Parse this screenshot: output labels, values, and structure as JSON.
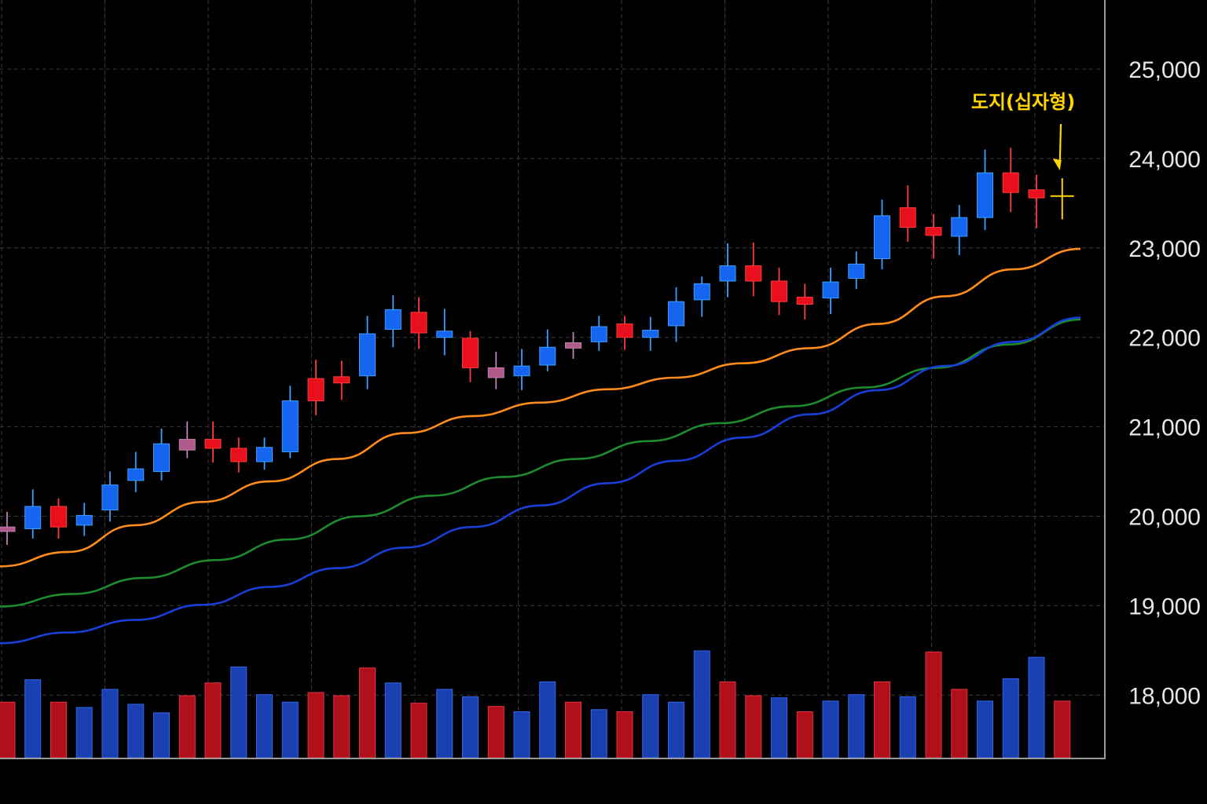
{
  "chart_data": {
    "type": "candlestick",
    "y_axis": {
      "ticks": [
        "25,000",
        "24,000",
        "23,000",
        "22,000",
        "21,000",
        "20,000",
        "19,000",
        "18,000"
      ],
      "tick_values": [
        25000,
        24000,
        23000,
        22000,
        21000,
        20000,
        19000,
        18000
      ],
      "ylim": [
        17300,
        25800
      ],
      "side": "right"
    },
    "grid": true,
    "colors": {
      "background": "#000000",
      "up": "#1565f0",
      "down": "#e8101c",
      "doji": "#ffd400",
      "ma_short": "#ff8c1a",
      "ma_mid": "#1e8c2e",
      "ma_long": "#1a3fd6",
      "grid": "#3a3a3a",
      "axis": "#9a9a9a"
    },
    "candles": [
      {
        "o": 19880,
        "h": 20050,
        "l": 19680,
        "c": 19830,
        "dir": "doji-purple"
      },
      {
        "o": 19860,
        "h": 20300,
        "l": 19750,
        "c": 20110,
        "dir": "up"
      },
      {
        "o": 20110,
        "h": 20200,
        "l": 19750,
        "c": 19880,
        "dir": "down"
      },
      {
        "o": 19900,
        "h": 20150,
        "l": 19780,
        "c": 20010,
        "dir": "up"
      },
      {
        "o": 20070,
        "h": 20500,
        "l": 19940,
        "c": 20350,
        "dir": "up"
      },
      {
        "o": 20400,
        "h": 20720,
        "l": 20270,
        "c": 20530,
        "dir": "up"
      },
      {
        "o": 20500,
        "h": 20980,
        "l": 20400,
        "c": 20810,
        "dir": "up"
      },
      {
        "o": 20860,
        "h": 21060,
        "l": 20650,
        "c": 20740,
        "dir": "doji-purple"
      },
      {
        "o": 20860,
        "h": 21060,
        "l": 20600,
        "c": 20760,
        "dir": "down"
      },
      {
        "o": 20760,
        "h": 20880,
        "l": 20490,
        "c": 20610,
        "dir": "down"
      },
      {
        "o": 20610,
        "h": 20880,
        "l": 20520,
        "c": 20770,
        "dir": "up"
      },
      {
        "o": 20720,
        "h": 21460,
        "l": 20650,
        "c": 21290,
        "dir": "up"
      },
      {
        "o": 21540,
        "h": 21750,
        "l": 21130,
        "c": 21290,
        "dir": "down"
      },
      {
        "o": 21560,
        "h": 21740,
        "l": 21300,
        "c": 21490,
        "dir": "down"
      },
      {
        "o": 21570,
        "h": 22240,
        "l": 21420,
        "c": 22040,
        "dir": "up"
      },
      {
        "o": 22090,
        "h": 22470,
        "l": 21890,
        "c": 22310,
        "dir": "up"
      },
      {
        "o": 22280,
        "h": 22450,
        "l": 21870,
        "c": 22050,
        "dir": "down"
      },
      {
        "o": 22000,
        "h": 22320,
        "l": 21800,
        "c": 22070,
        "dir": "up"
      },
      {
        "o": 21990,
        "h": 22070,
        "l": 21500,
        "c": 21660,
        "dir": "down"
      },
      {
        "o": 21660,
        "h": 21840,
        "l": 21420,
        "c": 21550,
        "dir": "doji-purple"
      },
      {
        "o": 21570,
        "h": 21870,
        "l": 21410,
        "c": 21680,
        "dir": "up"
      },
      {
        "o": 21690,
        "h": 22090,
        "l": 21620,
        "c": 21890,
        "dir": "up"
      },
      {
        "o": 21940,
        "h": 22060,
        "l": 21760,
        "c": 21880,
        "dir": "doji-purple"
      },
      {
        "o": 21950,
        "h": 22240,
        "l": 21850,
        "c": 22120,
        "dir": "up"
      },
      {
        "o": 22150,
        "h": 22240,
        "l": 21860,
        "c": 22000,
        "dir": "down"
      },
      {
        "o": 22000,
        "h": 22230,
        "l": 21850,
        "c": 22080,
        "dir": "up"
      },
      {
        "o": 22130,
        "h": 22560,
        "l": 21950,
        "c": 22400,
        "dir": "up"
      },
      {
        "o": 22420,
        "h": 22680,
        "l": 22230,
        "c": 22600,
        "dir": "up"
      },
      {
        "o": 22630,
        "h": 23050,
        "l": 22450,
        "c": 22800,
        "dir": "up"
      },
      {
        "o": 22800,
        "h": 23060,
        "l": 22460,
        "c": 22630,
        "dir": "down"
      },
      {
        "o": 22630,
        "h": 22780,
        "l": 22250,
        "c": 22400,
        "dir": "down"
      },
      {
        "o": 22450,
        "h": 22600,
        "l": 22200,
        "c": 22370,
        "dir": "down"
      },
      {
        "o": 22440,
        "h": 22780,
        "l": 22260,
        "c": 22620,
        "dir": "up"
      },
      {
        "o": 22660,
        "h": 22960,
        "l": 22540,
        "c": 22820,
        "dir": "up"
      },
      {
        "o": 22880,
        "h": 23540,
        "l": 22760,
        "c": 23360,
        "dir": "up"
      },
      {
        "o": 23450,
        "h": 23700,
        "l": 23070,
        "c": 23230,
        "dir": "down"
      },
      {
        "o": 23230,
        "h": 23380,
        "l": 22880,
        "c": 23140,
        "dir": "down"
      },
      {
        "o": 23130,
        "h": 23480,
        "l": 22920,
        "c": 23340,
        "dir": "up"
      },
      {
        "o": 23340,
        "h": 24100,
        "l": 23200,
        "c": 23840,
        "dir": "up"
      },
      {
        "o": 23840,
        "h": 24120,
        "l": 23400,
        "c": 23620,
        "dir": "down"
      },
      {
        "o": 23650,
        "h": 23820,
        "l": 23220,
        "c": 23560,
        "dir": "down"
      },
      {
        "o": 23580,
        "h": 23780,
        "l": 23320,
        "c": 23580,
        "dir": "doji"
      }
    ],
    "moving_averages": [
      {
        "color_key": "ma_short",
        "values": [
          19440,
          19600,
          19900,
          20160,
          20390,
          20640,
          20930,
          21120,
          21270,
          21420,
          21550,
          21710,
          21880,
          22150,
          22460,
          22760,
          22990
        ]
      },
      {
        "color_key": "ma_mid",
        "values": [
          18990,
          19130,
          19310,
          19510,
          19740,
          20000,
          20230,
          20440,
          20640,
          20840,
          21040,
          21230,
          21440,
          21660,
          21920,
          22200
        ]
      },
      {
        "color_key": "ma_long",
        "values": [
          18580,
          18700,
          18840,
          19010,
          19210,
          19420,
          19650,
          19880,
          20120,
          20370,
          20620,
          20880,
          21140,
          21410,
          21680,
          21950,
          22220
        ]
      }
    ],
    "volume": [
      {
        "v": 0.52,
        "dir": "down"
      },
      {
        "v": 0.73,
        "dir": "up"
      },
      {
        "v": 0.52,
        "dir": "down"
      },
      {
        "v": 0.47,
        "dir": "up"
      },
      {
        "v": 0.64,
        "dir": "up"
      },
      {
        "v": 0.5,
        "dir": "up"
      },
      {
        "v": 0.42,
        "dir": "up"
      },
      {
        "v": 0.58,
        "dir": "down"
      },
      {
        "v": 0.7,
        "dir": "down"
      },
      {
        "v": 0.85,
        "dir": "up"
      },
      {
        "v": 0.59,
        "dir": "up"
      },
      {
        "v": 0.52,
        "dir": "up"
      },
      {
        "v": 0.61,
        "dir": "down"
      },
      {
        "v": 0.58,
        "dir": "down"
      },
      {
        "v": 0.84,
        "dir": "down"
      },
      {
        "v": 0.7,
        "dir": "up"
      },
      {
        "v": 0.51,
        "dir": "down"
      },
      {
        "v": 0.64,
        "dir": "up"
      },
      {
        "v": 0.57,
        "dir": "up"
      },
      {
        "v": 0.48,
        "dir": "down"
      },
      {
        "v": 0.43,
        "dir": "up"
      },
      {
        "v": 0.71,
        "dir": "up"
      },
      {
        "v": 0.52,
        "dir": "down"
      },
      {
        "v": 0.45,
        "dir": "up"
      },
      {
        "v": 0.43,
        "dir": "down"
      },
      {
        "v": 0.59,
        "dir": "up"
      },
      {
        "v": 0.52,
        "dir": "up"
      },
      {
        "v": 1.0,
        "dir": "up"
      },
      {
        "v": 0.71,
        "dir": "down"
      },
      {
        "v": 0.58,
        "dir": "down"
      },
      {
        "v": 0.56,
        "dir": "up"
      },
      {
        "v": 0.43,
        "dir": "down"
      },
      {
        "v": 0.53,
        "dir": "up"
      },
      {
        "v": 0.59,
        "dir": "up"
      },
      {
        "v": 0.71,
        "dir": "down"
      },
      {
        "v": 0.57,
        "dir": "up"
      },
      {
        "v": 0.99,
        "dir": "down"
      },
      {
        "v": 0.64,
        "dir": "down"
      },
      {
        "v": 0.53,
        "dir": "up"
      },
      {
        "v": 0.74,
        "dir": "up"
      },
      {
        "v": 0.94,
        "dir": "up"
      },
      {
        "v": 0.53,
        "dir": "down"
      }
    ],
    "annotation": {
      "text": "도지(십자형)",
      "target": "last-candle"
    }
  }
}
